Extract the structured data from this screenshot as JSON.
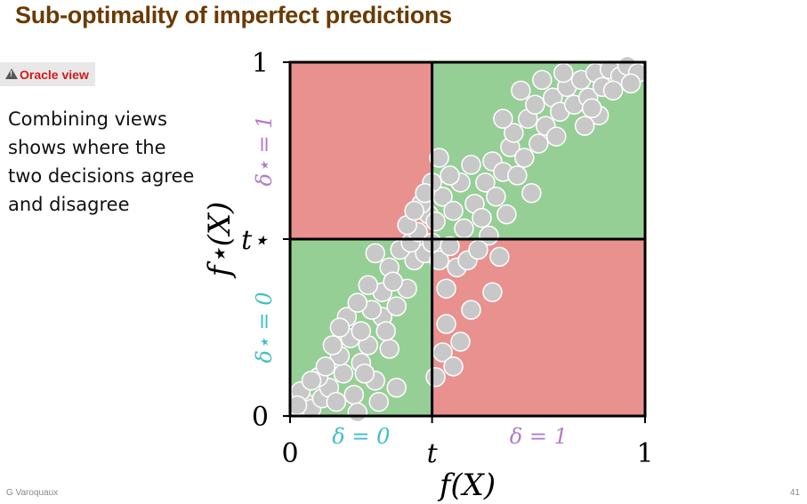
{
  "slide": {
    "title": "Sub-optimality of imperfect predictions",
    "oracle_badge": "Oracle view",
    "caption": "Combining views shows where the two decisions agree and disagree",
    "author": "G Varoquaux",
    "page_number": "41"
  },
  "colors": {
    "title": "#6b3a00",
    "agree_region": "#95cf95",
    "disagree_region": "#e8918f",
    "point_fill": "#c8c8c8",
    "point_stroke": "#ffffff",
    "delta_star_one_label": "#b27cc9",
    "delta_star_zero_label": "#3fbfc9",
    "delta_zero_label": "#3fbfc9",
    "delta_one_label": "#b27cc9"
  },
  "chart_data": {
    "type": "scatter",
    "xlabel": "f(X)",
    "ylabel": "f⋆(X)",
    "xlim": [
      0,
      1
    ],
    "ylim": [
      0,
      1
    ],
    "x_ticks": [
      "0",
      "t",
      "1"
    ],
    "y_ticks": [
      "0",
      "t⋆",
      "1"
    ],
    "threshold_x": 0.4,
    "threshold_y": 0.5,
    "region_labels": {
      "delta_zero": "δ = 0",
      "delta_one": "δ = 1",
      "delta_star_zero": "δ⋆ = 0",
      "delta_star_one": "δ⋆ = 1"
    },
    "quadrants": [
      {
        "name": "bottom-left",
        "state": "agree"
      },
      {
        "name": "top-left",
        "state": "disagree"
      },
      {
        "name": "top-right",
        "state": "agree"
      },
      {
        "name": "bottom-right",
        "state": "disagree"
      }
    ],
    "points": [
      [
        0.04,
        0.04
      ],
      [
        0.06,
        0.02
      ],
      [
        0.09,
        0.05
      ],
      [
        0.03,
        0.07
      ],
      [
        0.11,
        0.08
      ],
      [
        0.13,
        0.04
      ],
      [
        0.08,
        0.11
      ],
      [
        0.15,
        0.12
      ],
      [
        0.18,
        0.06
      ],
      [
        0.2,
        0.15
      ],
      [
        0.14,
        0.17
      ],
      [
        0.22,
        0.2
      ],
      [
        0.1,
        0.14
      ],
      [
        0.17,
        0.22
      ],
      [
        0.24,
        0.1
      ],
      [
        0.12,
        0.2
      ],
      [
        0.2,
        0.24
      ],
      [
        0.26,
        0.28
      ],
      [
        0.16,
        0.28
      ],
      [
        0.28,
        0.19
      ],
      [
        0.23,
        0.3
      ],
      [
        0.14,
        0.25
      ],
      [
        0.19,
        0.32
      ],
      [
        0.26,
        0.35
      ],
      [
        0.3,
        0.31
      ],
      [
        0.22,
        0.37
      ],
      [
        0.33,
        0.36
      ],
      [
        0.28,
        0.42
      ],
      [
        0.35,
        0.44
      ],
      [
        0.31,
        0.47
      ],
      [
        0.38,
        0.46
      ],
      [
        0.34,
        0.49
      ],
      [
        0.29,
        0.38
      ],
      [
        0.36,
        0.52
      ],
      [
        0.39,
        0.57
      ],
      [
        0.33,
        0.54
      ],
      [
        0.37,
        0.6
      ],
      [
        0.41,
        0.55
      ],
      [
        0.43,
        0.62
      ],
      [
        0.4,
        0.49
      ],
      [
        0.42,
        0.44
      ],
      [
        0.45,
        0.48
      ],
      [
        0.47,
        0.42
      ],
      [
        0.44,
        0.36
      ],
      [
        0.5,
        0.44
      ],
      [
        0.49,
        0.53
      ],
      [
        0.46,
        0.58
      ],
      [
        0.52,
        0.6
      ],
      [
        0.48,
        0.66
      ],
      [
        0.51,
        0.71
      ],
      [
        0.55,
        0.66
      ],
      [
        0.54,
        0.56
      ],
      [
        0.57,
        0.72
      ],
      [
        0.6,
        0.69
      ],
      [
        0.58,
        0.62
      ],
      [
        0.62,
        0.76
      ],
      [
        0.64,
        0.68
      ],
      [
        0.61,
        0.57
      ],
      [
        0.66,
        0.73
      ],
      [
        0.63,
        0.8
      ],
      [
        0.67,
        0.84
      ],
      [
        0.7,
        0.77
      ],
      [
        0.69,
        0.88
      ],
      [
        0.72,
        0.82
      ],
      [
        0.74,
        0.9
      ],
      [
        0.71,
        0.95
      ],
      [
        0.76,
        0.86
      ],
      [
        0.78,
        0.93
      ],
      [
        0.8,
        0.88
      ],
      [
        0.75,
        0.79
      ],
      [
        0.82,
        0.95
      ],
      [
        0.84,
        0.9
      ],
      [
        0.86,
        0.97
      ],
      [
        0.88,
        0.93
      ],
      [
        0.9,
        0.98
      ],
      [
        0.93,
        0.96
      ],
      [
        0.95,
        0.99
      ],
      [
        0.91,
        0.92
      ],
      [
        0.87,
        0.85
      ],
      [
        0.83,
        0.82
      ],
      [
        0.98,
        0.97
      ],
      [
        0.96,
        0.94
      ],
      [
        0.68,
        0.63
      ],
      [
        0.56,
        0.51
      ],
      [
        0.53,
        0.47
      ],
      [
        0.57,
        0.35
      ],
      [
        0.51,
        0.3
      ],
      [
        0.48,
        0.21
      ],
      [
        0.43,
        0.18
      ],
      [
        0.41,
        0.11
      ],
      [
        0.44,
        0.26
      ],
      [
        0.46,
        0.14
      ],
      [
        0.59,
        0.45
      ],
      [
        0.45,
        0.68
      ],
      [
        0.42,
        0.73
      ],
      [
        0.4,
        0.66
      ],
      [
        0.38,
        0.63
      ],
      [
        0.35,
        0.58
      ],
      [
        0.24,
        0.46
      ],
      [
        0.27,
        0.24
      ],
      [
        0.06,
        0.1
      ],
      [
        0.02,
        0.03
      ],
      [
        0.3,
        0.08
      ],
      [
        0.25,
        0.04
      ],
      [
        0.21,
        0.12
      ],
      [
        0.19,
        0.01
      ],
      [
        0.65,
        0.92
      ],
      [
        0.6,
        0.84
      ],
      [
        0.77,
        0.97
      ],
      [
        0.85,
        0.87
      ]
    ]
  }
}
